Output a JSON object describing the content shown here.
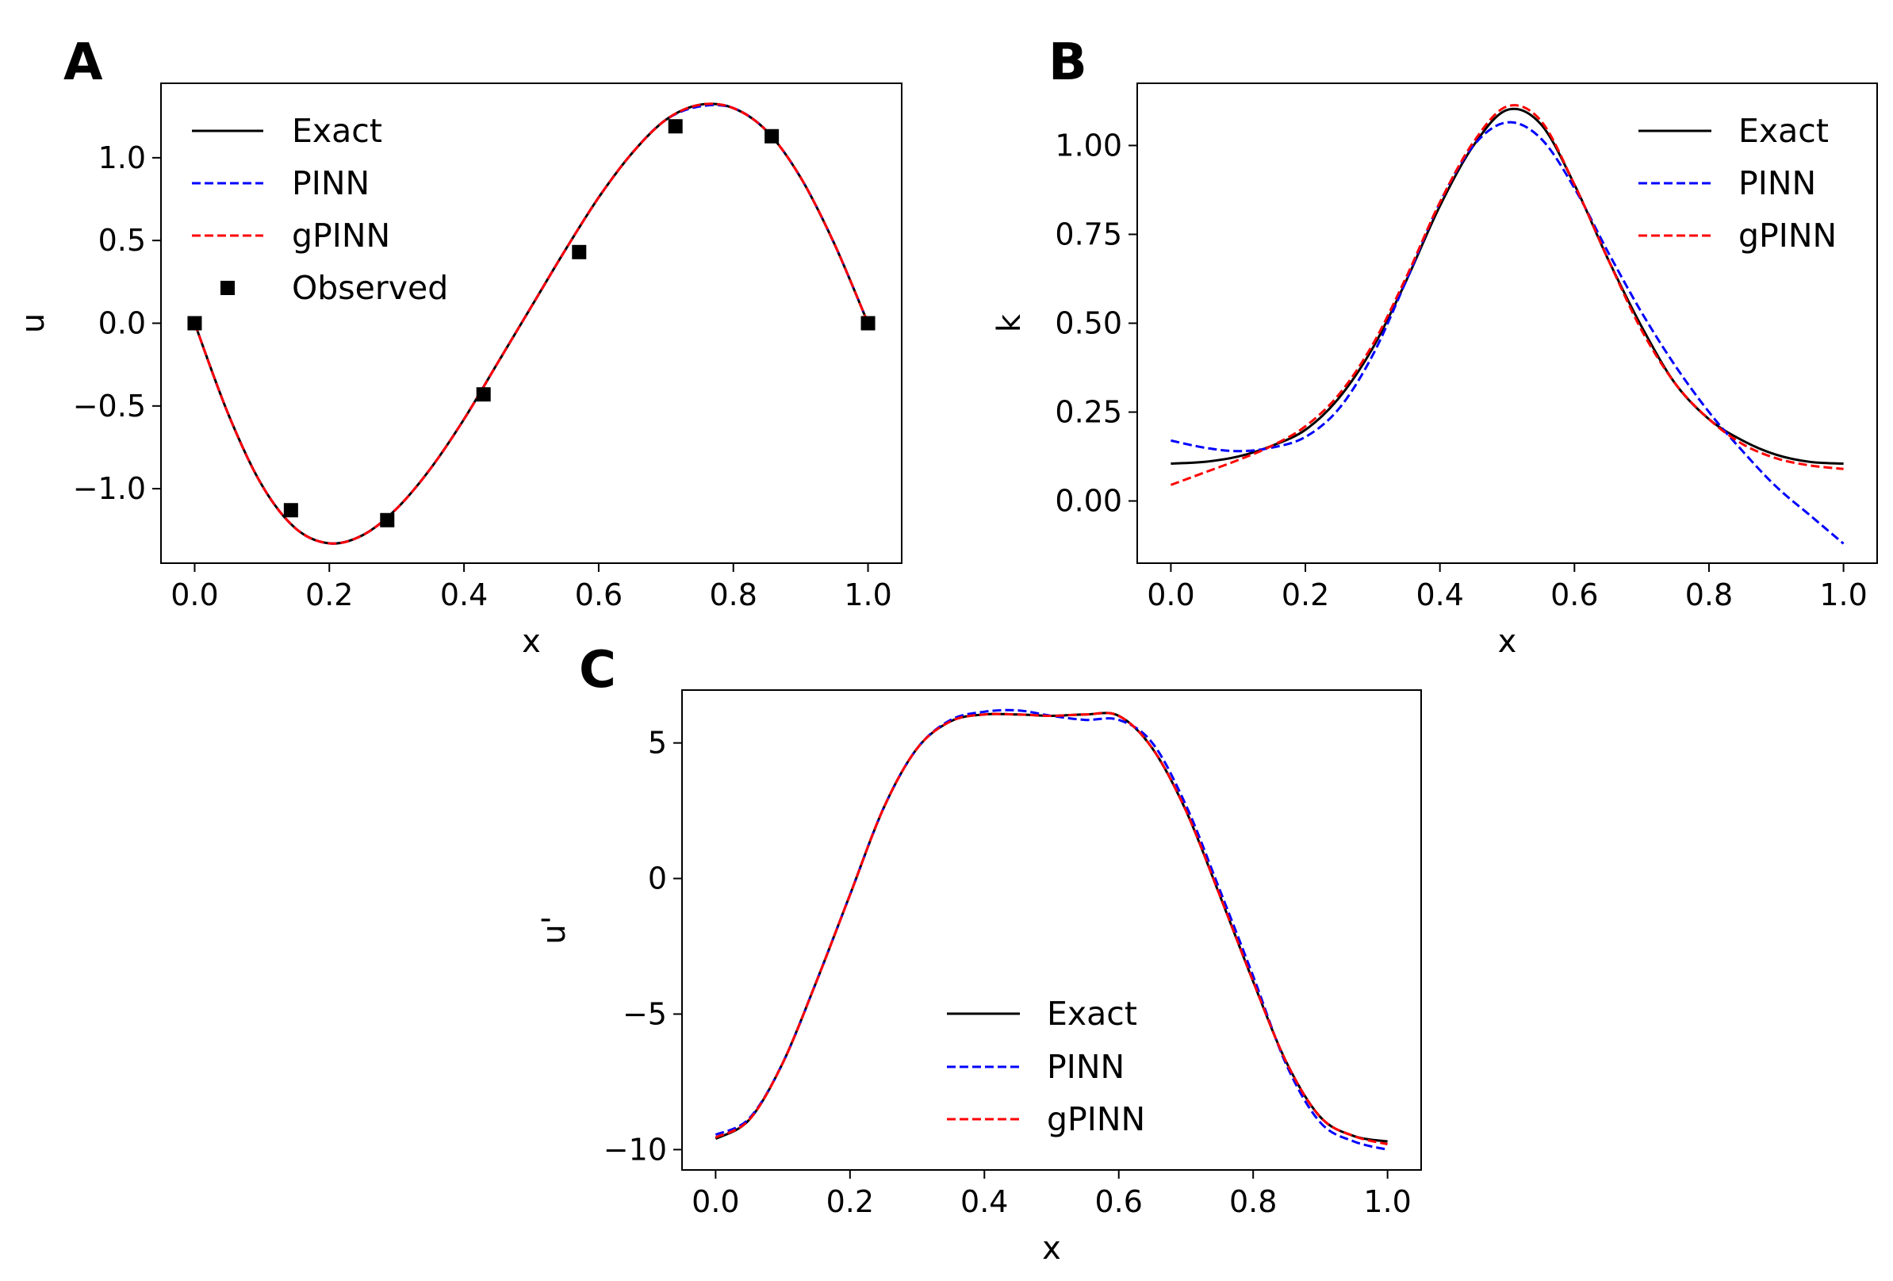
{
  "chart_data": [
    {
      "id": "A",
      "panel_label": "A",
      "type": "line",
      "title": "",
      "xlabel": "x",
      "ylabel": "u",
      "xlim": [
        -0.05,
        1.05
      ],
      "ylim": [
        -1.45,
        1.45
      ],
      "xticks": [
        0.0,
        0.2,
        0.4,
        0.6,
        0.8,
        1.0
      ],
      "xtick_labels": [
        "0.0",
        "0.2",
        "0.4",
        "0.6",
        "0.8",
        "1.0"
      ],
      "yticks": [
        -1.0,
        -0.5,
        0.0,
        0.5,
        1.0
      ],
      "ytick_labels": [
        "−1.0",
        "−0.5",
        "0.0",
        "0.5",
        "1.0"
      ],
      "legend_position": "top-left",
      "x": [
        0.0,
        0.05,
        0.1,
        0.15,
        0.2,
        0.25,
        0.3,
        0.35,
        0.4,
        0.45,
        0.5,
        0.55,
        0.6,
        0.65,
        0.7,
        0.75,
        0.8,
        0.85,
        0.9,
        0.95,
        1.0
      ],
      "series": [
        {
          "name": "Exact",
          "color": "#000000",
          "style": "solid",
          "values": [
            0.0,
            -0.55,
            -0.98,
            -1.24,
            -1.33,
            -1.28,
            -1.12,
            -0.88,
            -0.58,
            -0.24,
            0.1,
            0.44,
            0.76,
            1.03,
            1.23,
            1.32,
            1.3,
            1.16,
            0.88,
            0.48,
            0.0
          ]
        },
        {
          "name": "PINN",
          "color": "#0000ff",
          "style": "dashed",
          "values": [
            0.0,
            -0.55,
            -0.98,
            -1.24,
            -1.33,
            -1.28,
            -1.12,
            -0.88,
            -0.58,
            -0.24,
            0.1,
            0.44,
            0.76,
            1.03,
            1.23,
            1.31,
            1.3,
            1.16,
            0.88,
            0.48,
            0.0
          ]
        },
        {
          "name": "gPINN",
          "color": "#ff0000",
          "style": "dashed",
          "values": [
            0.0,
            -0.55,
            -0.98,
            -1.24,
            -1.33,
            -1.28,
            -1.12,
            -0.88,
            -0.58,
            -0.24,
            0.1,
            0.44,
            0.76,
            1.03,
            1.23,
            1.32,
            1.3,
            1.16,
            0.88,
            0.48,
            0.0
          ]
        }
      ],
      "observed": {
        "name": "Observed",
        "x": [
          0.0,
          0.143,
          0.286,
          0.429,
          0.571,
          0.714,
          0.857,
          1.0
        ],
        "y": [
          0.0,
          -1.13,
          -1.19,
          -0.43,
          0.43,
          1.19,
          1.13,
          0.0
        ]
      }
    },
    {
      "id": "B",
      "panel_label": "B",
      "type": "line",
      "title": "",
      "xlabel": "x",
      "ylabel": "k",
      "xlim": [
        -0.05,
        1.05
      ],
      "ylim": [
        -0.175,
        1.175
      ],
      "xticks": [
        0.0,
        0.2,
        0.4,
        0.6,
        0.8,
        1.0
      ],
      "xtick_labels": [
        "0.0",
        "0.2",
        "0.4",
        "0.6",
        "0.8",
        "1.0"
      ],
      "yticks": [
        0.0,
        0.25,
        0.5,
        0.75,
        1.0
      ],
      "ytick_labels": [
        "0.00",
        "0.25",
        "0.50",
        "0.75",
        "1.00"
      ],
      "legend_position": "top-right",
      "x": [
        0.0,
        0.05,
        0.1,
        0.15,
        0.2,
        0.25,
        0.3,
        0.35,
        0.4,
        0.45,
        0.5,
        0.55,
        0.6,
        0.65,
        0.7,
        0.75,
        0.8,
        0.85,
        0.9,
        0.95,
        1.0
      ],
      "series": [
        {
          "name": "Exact",
          "color": "#000000",
          "style": "solid",
          "values": [
            0.105,
            0.11,
            0.125,
            0.155,
            0.2,
            0.29,
            0.43,
            0.62,
            0.83,
            1.0,
            1.1,
            1.06,
            0.89,
            0.68,
            0.49,
            0.33,
            0.23,
            0.17,
            0.13,
            0.11,
            0.105
          ]
        },
        {
          "name": "PINN",
          "color": "#0000ff",
          "style": "dashed",
          "values": [
            0.17,
            0.15,
            0.14,
            0.15,
            0.18,
            0.26,
            0.41,
            0.62,
            0.84,
            1.0,
            1.065,
            1.02,
            0.88,
            0.7,
            0.53,
            0.38,
            0.25,
            0.14,
            0.04,
            -0.04,
            -0.12
          ]
        },
        {
          "name": "gPINN",
          "color": "#ff0000",
          "style": "dashed",
          "values": [
            0.045,
            0.08,
            0.115,
            0.155,
            0.21,
            0.3,
            0.44,
            0.63,
            0.84,
            1.01,
            1.11,
            1.07,
            0.89,
            0.68,
            0.48,
            0.33,
            0.23,
            0.16,
            0.12,
            0.1,
            0.09
          ]
        }
      ]
    },
    {
      "id": "C",
      "panel_label": "C",
      "type": "line",
      "title": "",
      "xlabel": "x",
      "ylabel": "u'",
      "xlim": [
        -0.05,
        1.05
      ],
      "ylim": [
        -10.75,
        6.95
      ],
      "xticks": [
        0.0,
        0.2,
        0.4,
        0.6,
        0.8,
        1.0
      ],
      "xtick_labels": [
        "0.0",
        "0.2",
        "0.4",
        "0.6",
        "0.8",
        "1.0"
      ],
      "yticks": [
        -10,
        -5,
        0,
        5
      ],
      "ytick_labels": [
        "−10",
        "−5",
        "0",
        "5"
      ],
      "legend_position": "lower-center",
      "x": [
        0.0,
        0.05,
        0.1,
        0.15,
        0.2,
        0.25,
        0.3,
        0.35,
        0.4,
        0.45,
        0.5,
        0.55,
        0.6,
        0.65,
        0.7,
        0.75,
        0.8,
        0.85,
        0.9,
        0.95,
        1.0
      ],
      "series": [
        {
          "name": "Exact",
          "color": "#000000",
          "style": "solid",
          "values": [
            -9.6,
            -8.9,
            -6.8,
            -3.8,
            -0.6,
            2.6,
            4.8,
            5.8,
            6.05,
            6.05,
            6.0,
            6.05,
            6.0,
            4.8,
            2.5,
            -0.6,
            -3.8,
            -6.8,
            -8.8,
            -9.5,
            -9.7
          ]
        },
        {
          "name": "PINN",
          "color": "#0000ff",
          "style": "dashed",
          "values": [
            -9.45,
            -8.85,
            -6.8,
            -3.8,
            -0.6,
            2.6,
            4.8,
            5.85,
            6.15,
            6.2,
            6.0,
            5.85,
            5.85,
            5.0,
            2.7,
            -0.4,
            -3.6,
            -6.9,
            -9.0,
            -9.7,
            -10.0
          ]
        },
        {
          "name": "gPINN",
          "color": "#ff0000",
          "style": "dashed",
          "values": [
            -9.55,
            -8.9,
            -6.8,
            -3.8,
            -0.6,
            2.6,
            4.8,
            5.8,
            6.05,
            6.05,
            6.0,
            6.05,
            6.0,
            4.8,
            2.5,
            -0.6,
            -3.8,
            -6.8,
            -8.8,
            -9.5,
            -9.8
          ]
        }
      ]
    }
  ]
}
